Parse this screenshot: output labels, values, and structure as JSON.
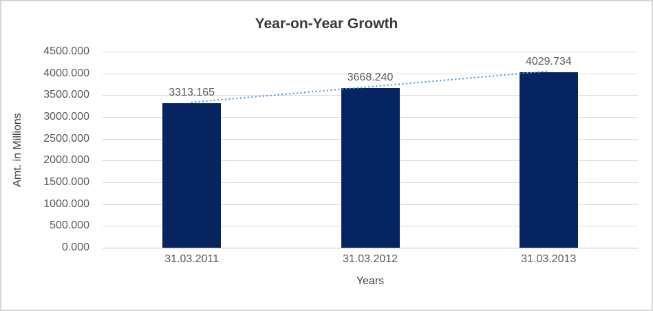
{
  "chart_data": {
    "type": "bar",
    "title": "Year-on-Year Growth",
    "xlabel": "Years",
    "ylabel": "Amt. in Millions",
    "categories": [
      "31.03.2011",
      "31.03.2012",
      "31.03.2013"
    ],
    "values": [
      3313.165,
      3668.24,
      4029.734
    ],
    "data_labels": [
      "3313.165",
      "3668.240",
      "4029.734"
    ],
    "ylim": [
      0,
      4500
    ],
    "ytick_step": 500,
    "ytick_labels": [
      "0.000",
      "500.000",
      "1000.000",
      "1500.000",
      "2000.000",
      "2500.000",
      "3000.000",
      "3500.000",
      "4000.000",
      "4500.000"
    ],
    "grid": true,
    "legend": "none",
    "trendline": {
      "type": "linear",
      "style": "dotted",
      "color": "#5b9bd5"
    },
    "colors": {
      "bar": "#06245f",
      "gridline": "#d9d9d9",
      "axis_line": "#bfbfbf",
      "tick_text": "#595959",
      "title_text": "#3b3b3b",
      "axis_title_text": "#404040",
      "frame_border": "#d5d5d5",
      "background": "#ffffff"
    }
  }
}
